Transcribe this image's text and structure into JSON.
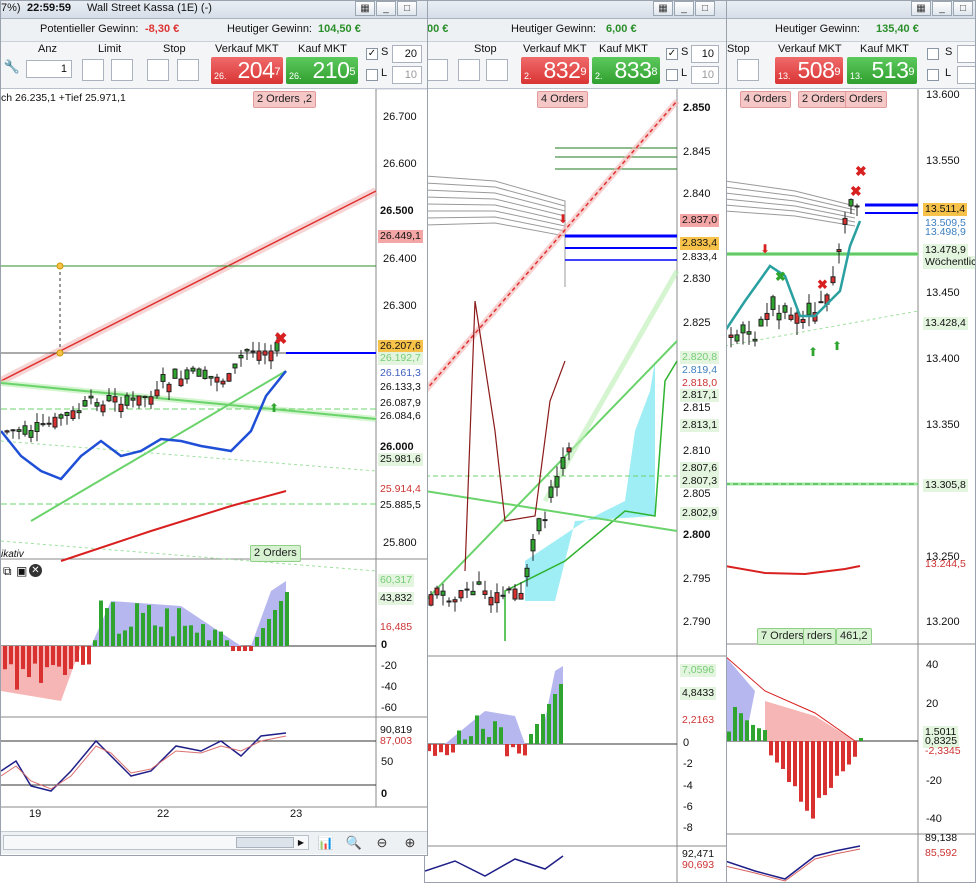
{
  "window1": {
    "title_pct": "7%)",
    "time": "22:59:59",
    "instrument": "Wall Street Kassa (1E) (-)",
    "pot_gain_label": "Potentieller Gewinn:",
    "pot_gain_value": "-8,30 €",
    "today_gain_label": "Heutiger Gewinn:",
    "today_gain_value": "104,50 €",
    "col_anz": "Anz",
    "col_limit": "Limit",
    "col_stop": "Stop",
    "col_sell": "Verkauf MKT",
    "col_buy": "Kauf MKT",
    "qty": "1",
    "sell_small": "26.",
    "sell_big": "204",
    "sell_sup": "7",
    "buy_small": "26.",
    "buy_big": "210",
    "buy_sup": "5",
    "s_label": "S",
    "s_value": "20",
    "l_label": "L",
    "l_value": "10",
    "info_hi_lo": "ch 26.235,1 +Tief 25.971,1",
    "orders_top": "2 Orders",
    "orders_top_suffix": ",2",
    "orders_bottom": "2 Orders",
    "indicator_label": "ikativ",
    "axis_prices": [
      "26.700",
      "26.600",
      "26.500",
      "26.400",
      "26.300",
      "26.000",
      "25.800"
    ],
    "price_tags": [
      "26.449,1",
      "26.207,6",
      "26.192,7",
      "26.161,3",
      "26.133,3",
      "26.087,9",
      "26.084,6",
      "25.981,6",
      "25.914,4",
      "25.885,5"
    ],
    "macd_tags": [
      "60,317",
      "43,832",
      "16,485"
    ],
    "macd_axis": [
      "0",
      "-20",
      "-40",
      "-60"
    ],
    "stoch_tags": [
      "90,819",
      "87,003"
    ],
    "stoch_axis": [
      "50",
      "0"
    ],
    "date_labels": [
      "19",
      "22",
      "23"
    ]
  },
  "window2": {
    "today_gain_label": "Heutiger Gewinn:",
    "today_gain_value": "6,00 €",
    "left_cut": "00 €",
    "col_stop": "Stop",
    "col_sell": "Verkauf MKT",
    "col_buy": "Kauf MKT",
    "sell_small": "2.",
    "sell_big": "832",
    "sell_sup": "9",
    "buy_small": "2.",
    "buy_big": "833",
    "buy_sup": "8",
    "s_label": "S",
    "s_value": "10",
    "l_label": "L",
    "l_value": "10",
    "orders_top": "4 Orders",
    "axis_prices": [
      "2.850",
      "2.845",
      "2.840",
      "2.830",
      "2.825",
      "2.815",
      "2.810",
      "2.805",
      "2.800",
      "2.795",
      "2.790"
    ],
    "price_tags": [
      "2.837,0",
      "2.833,4",
      "2.833,4",
      "2.820,8",
      "2.819,4",
      "2.818,0",
      "2.817,1",
      "2.813,1",
      "2.807,6",
      "2.807,3",
      "2.802,9"
    ],
    "macd_tags": [
      "7,0596",
      "4,8433",
      "2,2163"
    ],
    "macd_axis": [
      "0",
      "-2",
      "-4",
      "-6",
      "-8"
    ],
    "stoch_tags": [
      "92,471",
      "90,693"
    ]
  },
  "window3": {
    "today_gain_label": "Heutiger Gewinn:",
    "today_gain_value": "135,40 €",
    "col_stop": "Stop",
    "col_sell": "Verkauf MKT",
    "col_buy": "Kauf MKT",
    "sell_small": "13.",
    "sell_big": "508",
    "sell_sup": "9",
    "buy_small": "13.",
    "buy_big": "513",
    "buy_sup": "9",
    "s_label": "S",
    "l_label": "L",
    "orders_a": "4 Orders",
    "orders_b": "2 Orders",
    "orders_c": "Orders",
    "orders_bottom": "7 Orders",
    "orders_bottom_b": "rders",
    "orders_bottom_c": "461,2",
    "axis_prices": [
      "13.600",
      "13.550",
      "13.500",
      "13.450",
      "13.400",
      "13.350",
      "13.300",
      "13.250",
      "13.200"
    ],
    "price_tags": [
      "13.511,4",
      "13.509,5",
      "13.498,9",
      "13.478,9",
      "Wöchentlic",
      "13.428,4",
      "13.305,8",
      "13.244,5"
    ],
    "macd_tags": [
      "1,5011",
      "0,8325",
      "-2,3345"
    ],
    "macd_axis": [
      "40",
      "20",
      "0",
      "-20",
      "-40"
    ],
    "stoch_tags": [
      "89,138",
      "85,592"
    ]
  },
  "colors": {
    "up": "#2fa52f",
    "down": "#d93030",
    "blue_line": "#0000ff",
    "orange_tag": "#f7c24a",
    "window_border": "#9aa3ad"
  }
}
